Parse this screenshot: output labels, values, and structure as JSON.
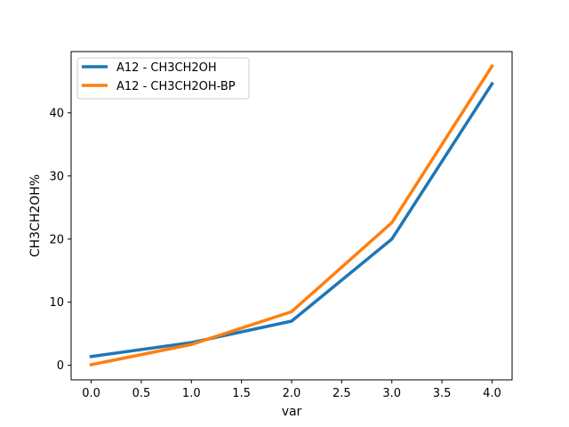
{
  "chart_data": {
    "type": "line",
    "xlabel": "var",
    "ylabel": "CH3CH2OH%",
    "xlim": [
      -0.2,
      4.2
    ],
    "ylim": [
      -2.3,
      49.7
    ],
    "xticks": [
      0.0,
      0.5,
      1.0,
      1.5,
      2.0,
      2.5,
      3.0,
      3.5,
      4.0
    ],
    "xtick_labels": [
      "0.0",
      "0.5",
      "1.0",
      "1.5",
      "2.0",
      "2.5",
      "3.0",
      "3.5",
      "4.0"
    ],
    "yticks": [
      0,
      10,
      20,
      30,
      40
    ],
    "ytick_labels": [
      "0",
      "10",
      "20",
      "30",
      "40"
    ],
    "grid": false,
    "legend_position": "top-left",
    "series": [
      {
        "name": "A12 - CH3CH2OH",
        "color": "#1f77b4",
        "x": [
          0,
          1,
          2,
          3,
          4
        ],
        "y": [
          1.4,
          3.6,
          7.0,
          20.0,
          44.6
        ]
      },
      {
        "name": "A12 - CH3CH2OH-BP",
        "color": "#ff7f0e",
        "x": [
          0,
          1,
          2,
          3,
          4
        ],
        "y": [
          0.1,
          3.3,
          8.5,
          22.6,
          47.4
        ]
      }
    ]
  }
}
